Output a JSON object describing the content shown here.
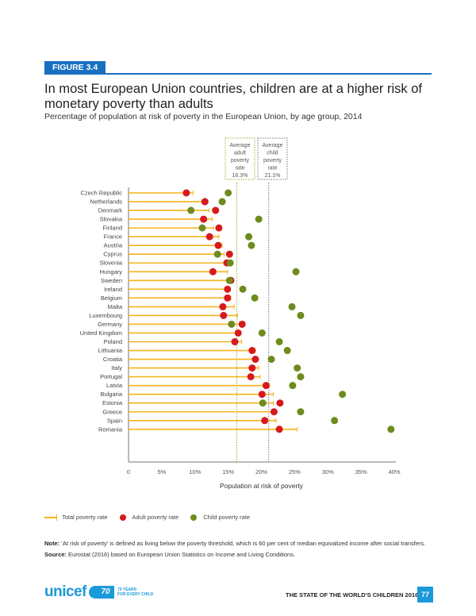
{
  "figure_label": "FIGURE 3.4",
  "title": "In most European Union countries, children are at a higher risk of monetary poverty than adults",
  "subtitle": "Percentage of population at risk of poverty in the European Union, by age group, 2014",
  "colors": {
    "brand_blue": "#1a70c0",
    "total_line": "#f5b31a",
    "adult_dot": "#d7191c",
    "child_dot": "#6e8b1e",
    "adult_avg_line": "#a6ad3c",
    "child_avg_line": "#7d6f8f"
  },
  "chart_data": {
    "type": "dot-plot",
    "title": "In most European Union countries, children are at a higher risk of monetary poverty than adults",
    "xlabel": "Population at risk of poverty",
    "xlim": [
      0,
      40
    ],
    "x_ticks": [
      "0",
      "5%",
      "10%",
      "15%",
      "20%",
      "25%",
      "30%",
      "35%",
      "40%"
    ],
    "x_tick_values": [
      0,
      5,
      10,
      15,
      20,
      25,
      30,
      35,
      40
    ],
    "grid": false,
    "legend_position": "bottom-left",
    "categories": [
      "Czech Republic",
      "Netherlands",
      "Denmark",
      "Slovakia",
      "Finland",
      "France",
      "Austria",
      "Cyprus",
      "Slovenia",
      "Hungary",
      "Sweden",
      "Ireland",
      "Belgium",
      "Malta",
      "Luxembourg",
      "Germany",
      "United Kingdom",
      "Poland",
      "Lithuania",
      "Croatia",
      "Italy",
      "Portugal",
      "Latvia",
      "Bulgaria",
      "Estonia",
      "Greece",
      "Spain",
      "Romania"
    ],
    "series": [
      {
        "name": "Total poverty rate",
        "values": [
          9.7,
          11.6,
          12.1,
          12.6,
          12.8,
          13.6,
          14.1,
          14.4,
          14.5,
          14.9,
          15.1,
          15.2,
          15.4,
          15.9,
          16.4,
          16.7,
          16.8,
          17.0,
          19.1,
          19.4,
          19.6,
          19.8,
          21.2,
          21.8,
          21.8,
          22.1,
          22.2,
          25.4
        ]
      },
      {
        "name": "Adult poverty rate",
        "values": [
          8.7,
          11.5,
          13.1,
          11.3,
          13.6,
          12.2,
          13.5,
          15.2,
          14.8,
          12.7,
          15.4,
          14.9,
          14.9,
          14.2,
          14.3,
          17.1,
          16.5,
          16.0,
          18.6,
          19.1,
          18.6,
          18.4,
          20.7,
          20.1,
          22.8,
          21.9,
          20.5,
          22.7
        ]
      },
      {
        "name": "Child poverty rate",
        "values": [
          15.0,
          14.1,
          9.4,
          19.6,
          11.1,
          18.1,
          18.5,
          13.4,
          15.3,
          25.2,
          15.2,
          17.2,
          19.0,
          24.6,
          25.9,
          15.5,
          20.1,
          22.7,
          23.9,
          21.5,
          25.4,
          25.9,
          24.7,
          32.2,
          20.2,
          25.9,
          31.0,
          39.5
        ]
      }
    ],
    "reference_lines": [
      {
        "name": "Average adult poverty rate",
        "value": 16.3,
        "label_lines": [
          "Average",
          "adult",
          "poverty",
          "rate",
          "16.3%"
        ]
      },
      {
        "name": "Average child poverty rate",
        "value": 21.1,
        "label_lines": [
          "Average",
          "child",
          "poverty",
          "rate",
          "21.1%"
        ]
      }
    ]
  },
  "legend": {
    "total": "Total poverty rate",
    "adult": "Adult poverty rate",
    "child": "Child poverty rate"
  },
  "note": {
    "label": "Note:",
    "text": " ‘At risk of poverty’ is defined as living below the poverty threshold, which is 60 per cent of median equivalized income after social transfers."
  },
  "source": {
    "label": "Source:",
    "text": " Eurostat (2016) based on European Union Statistics on Income and Living Conditions."
  },
  "footer": {
    "logo": "unicef",
    "anniversary_mark": "70",
    "anniversary_line1": "70 YEARS",
    "anniversary_line2": "FOR EVERY CHILD",
    "running_head": "THE STATE OF THE WORLD’S CHILDREN 2016",
    "page_number": "77"
  }
}
